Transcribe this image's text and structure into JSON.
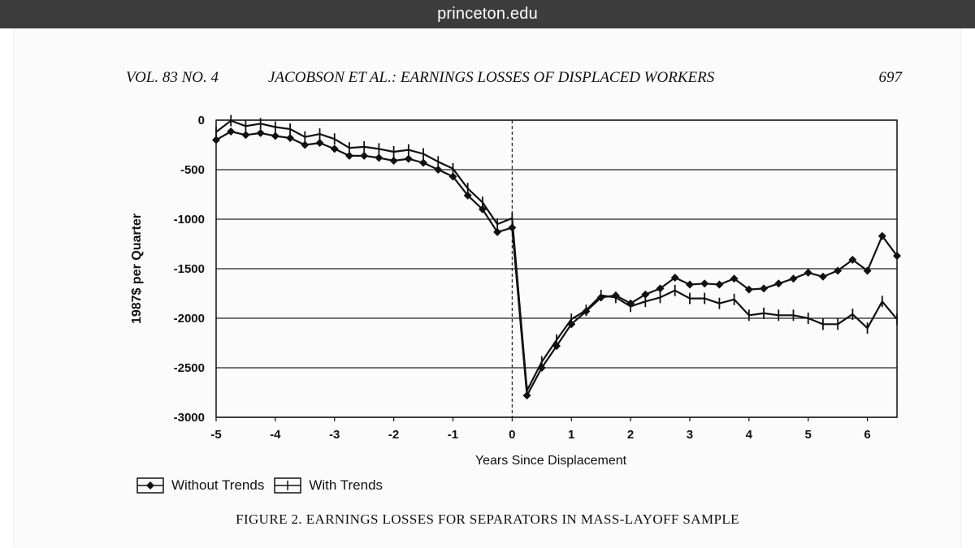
{
  "browser": {
    "url": "princeton.edu"
  },
  "page_header": {
    "volume": "VOL. 83 NO. 4",
    "running_title": "JACOBSON ET AL.: EARNINGS LOSSES OF DISPLACED WORKERS",
    "page_number": "697"
  },
  "caption": "FIGURE 2. EARNINGS LOSSES FOR SEPARATORS IN MASS-LAYOFF SAMPLE",
  "chart_data": {
    "type": "line",
    "title": "",
    "xlabel": "Years Since Displacement",
    "ylabel": "1987$ per Quarter",
    "xlim": [
      -5,
      6.5
    ],
    "ylim": [
      -3000,
      0
    ],
    "xticks": [
      -5,
      -4,
      -3,
      -2,
      -1,
      0,
      1,
      2,
      3,
      4,
      5,
      6
    ],
    "yticks": [
      0,
      -500,
      -1000,
      -1500,
      -2000,
      -2500,
      -3000
    ],
    "grid": "horizontal",
    "reference_line": {
      "x": 0,
      "style": "dashed"
    },
    "legend_position": "bottom-left",
    "x": [
      -5,
      -4.75,
      -4.5,
      -4.25,
      -4,
      -3.75,
      -3.5,
      -3.25,
      -3,
      -2.75,
      -2.5,
      -2.25,
      -2,
      -1.75,
      -1.5,
      -1.25,
      -1,
      -0.75,
      -0.5,
      -0.25,
      0,
      0.25,
      0.5,
      0.75,
      1,
      1.25,
      1.5,
      1.75,
      2,
      2.25,
      2.5,
      2.75,
      3,
      3.25,
      3.5,
      3.75,
      4,
      4.25,
      4.5,
      4.75,
      5,
      5.25,
      5.5,
      5.75,
      6,
      6.25,
      6.5
    ],
    "series": [
      {
        "name": "Without Trends",
        "marker": "diamond",
        "values": [
          -200,
          -115,
          -150,
          -130,
          -160,
          -180,
          -250,
          -230,
          -290,
          -360,
          -360,
          -380,
          -410,
          -390,
          -430,
          -500,
          -570,
          -760,
          -900,
          -1130,
          -1085,
          -2780,
          -2500,
          -2280,
          -2060,
          -1930,
          -1790,
          -1770,
          -1850,
          -1760,
          -1700,
          -1590,
          -1660,
          -1650,
          -1660,
          -1600,
          -1710,
          -1700,
          -1650,
          -1600,
          -1540,
          -1580,
          -1520,
          -1410,
          -1520,
          -1170,
          -1370
        ]
      },
      {
        "name": "With Trends",
        "marker": "plus",
        "values": [
          -120,
          -5,
          -60,
          -35,
          -70,
          -90,
          -170,
          -140,
          -190,
          -280,
          -270,
          -290,
          -320,
          -300,
          -340,
          -420,
          -490,
          -690,
          -830,
          -1050,
          -990,
          -2730,
          -2440,
          -2220,
          -2010,
          -1920,
          -1770,
          -1790,
          -1880,
          -1830,
          -1790,
          -1720,
          -1800,
          -1800,
          -1850,
          -1810,
          -1970,
          -1950,
          -1970,
          -1970,
          -2000,
          -2060,
          -2060,
          -1960,
          -2100,
          -1830,
          -2010
        ]
      }
    ]
  }
}
